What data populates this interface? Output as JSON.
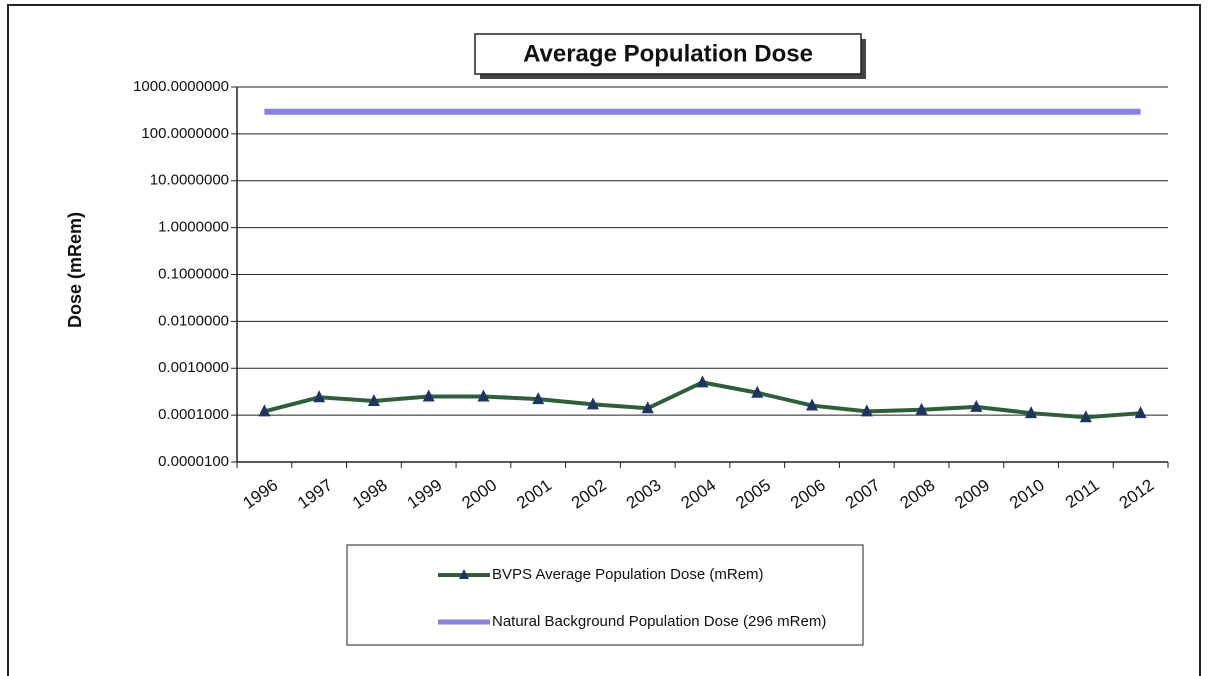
{
  "chart_data": {
    "type": "line",
    "title": "Average Population Dose",
    "y_label": "Dose (mRem)",
    "categories": [
      "1996",
      "1997",
      "1998",
      "1999",
      "2000",
      "2001",
      "2002",
      "2003",
      "2004",
      "2005",
      "2006",
      "2007",
      "2008",
      "2009",
      "2010",
      "2011",
      "2012"
    ],
    "series": [
      {
        "name": "BVPS Average Population Dose (mRem)",
        "color": "#2f5f3a",
        "marker_color": "#1f3560",
        "values": [
          0.00012,
          0.00024,
          0.0002,
          0.00025,
          0.00025,
          0.00022,
          0.00017,
          0.00014,
          0.0005,
          0.0003,
          0.00016,
          0.00012,
          0.00013,
          0.00015,
          0.00011,
          9e-05,
          0.00011
        ]
      },
      {
        "name": "Natural Background Population Dose (296 mRem)",
        "color": "#8585dd",
        "values": [
          296,
          296,
          296,
          296,
          296,
          296,
          296,
          296,
          296,
          296,
          296,
          296,
          296,
          296,
          296,
          296,
          296
        ]
      }
    ],
    "log_y": true,
    "ylim": [
      1e-05,
      1000
    ],
    "yticks": [
      {
        "value": 1e-05,
        "label": "0.0000100"
      },
      {
        "value": 0.0001,
        "label": "0.0001000"
      },
      {
        "value": 0.001,
        "label": "0.0010000"
      },
      {
        "value": 0.01,
        "label": "0.0100000"
      },
      {
        "value": 0.1,
        "label": "0.1000000"
      },
      {
        "value": 1,
        "label": "1.0000000"
      },
      {
        "value": 10,
        "label": "10.0000000"
      },
      {
        "value": 100,
        "label": "100.0000000"
      },
      {
        "value": 1000,
        "label": "1000.0000000"
      }
    ],
    "grid": true,
    "legend": "bottom"
  }
}
